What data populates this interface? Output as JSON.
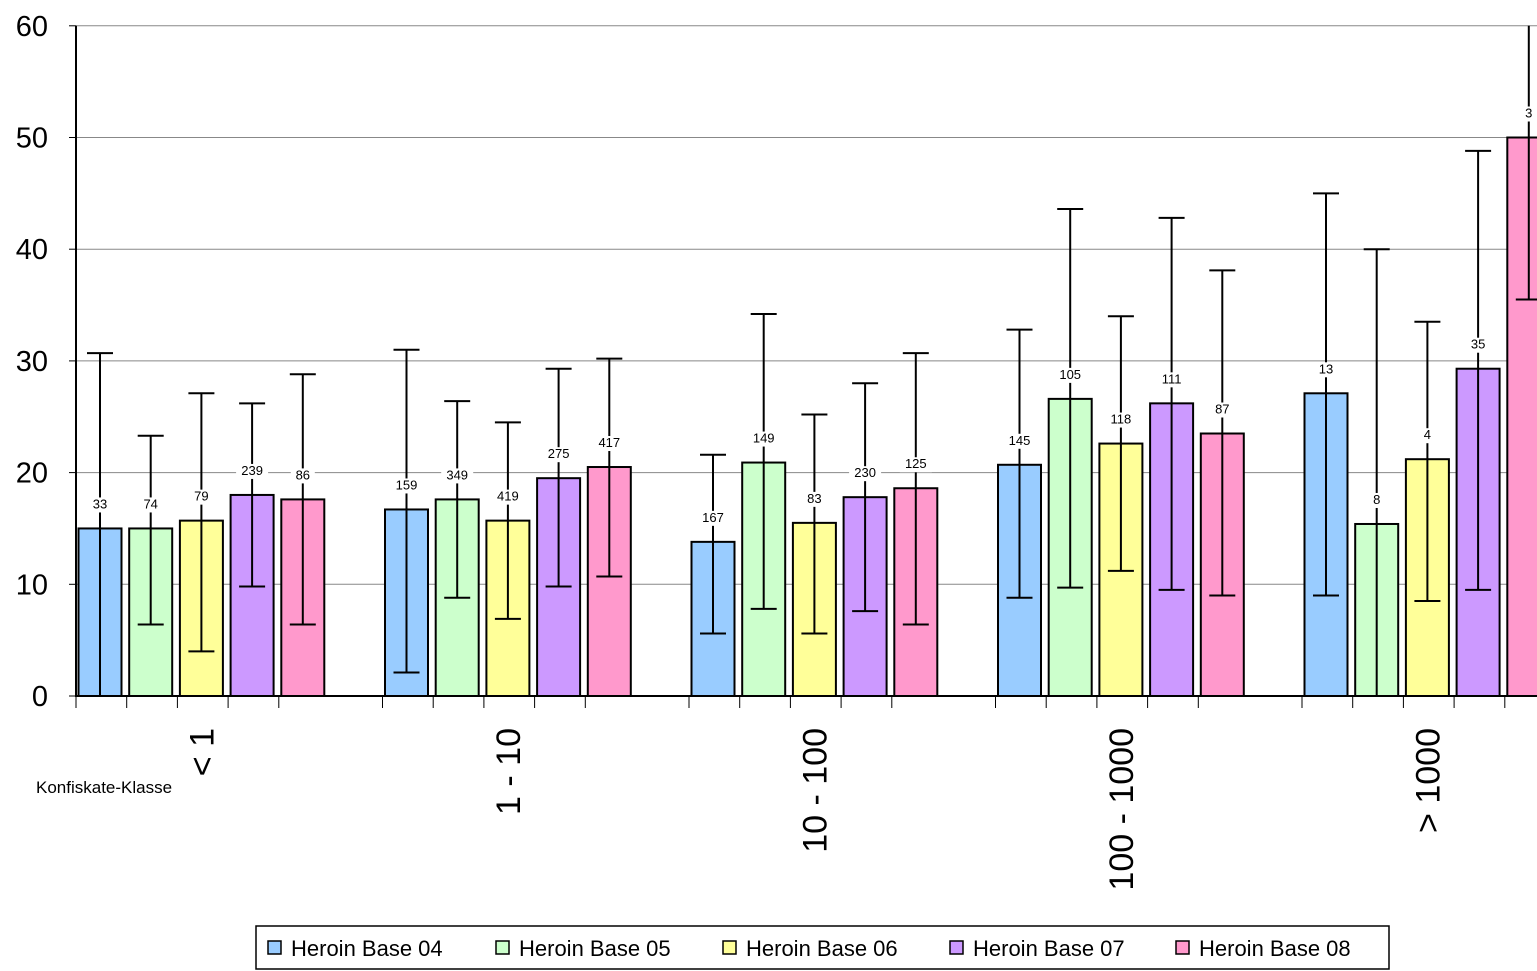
{
  "chart_data": {
    "type": "bar",
    "title": "",
    "xlabel": "Konfiskate-Klasse",
    "ylabel": "",
    "ylim": [
      0,
      60
    ],
    "yticks": [
      0,
      10,
      20,
      30,
      40,
      50,
      60
    ],
    "grid": true,
    "legend_position": "bottom",
    "categories": [
      "< 1",
      "1 - 10",
      "10 - 100",
      "100 - 1000",
      "> 1000"
    ],
    "series": [
      {
        "name": "Heroin Base 04",
        "color": "#99ccff",
        "values": [
          15.0,
          16.7,
          13.8,
          20.7,
          27.1
        ],
        "error_low": [
          0.0,
          2.1,
          5.6,
          8.8,
          9.0
        ],
        "error_high": [
          30.7,
          31.0,
          21.6,
          32.8,
          45.0
        ],
        "n": [
          "33",
          "159",
          "167",
          "145",
          "13"
        ]
      },
      {
        "name": "Heroin Base 05",
        "color": "#ccffcc",
        "values": [
          15.0,
          17.6,
          20.9,
          26.6,
          15.4
        ],
        "error_low": [
          6.4,
          8.8,
          7.8,
          9.7,
          0.0
        ],
        "error_high": [
          23.3,
          26.4,
          34.2,
          43.6,
          40.0
        ],
        "n": [
          "74",
          "349",
          "149",
          "105",
          "8"
        ]
      },
      {
        "name": "Heroin Base 06",
        "color": "#ffff99",
        "values": [
          15.7,
          15.7,
          15.5,
          22.6,
          21.2
        ],
        "error_low": [
          4.0,
          6.9,
          5.6,
          11.2,
          8.5
        ],
        "error_high": [
          27.1,
          24.5,
          25.2,
          34.0,
          33.5
        ],
        "n": [
          "79",
          "419",
          "83",
          "118",
          "4"
        ]
      },
      {
        "name": "Heroin Base 07",
        "color": "#cc99ff",
        "values": [
          18.0,
          19.5,
          17.8,
          26.2,
          29.3
        ],
        "error_low": [
          9.8,
          9.8,
          7.6,
          9.5,
          9.5
        ],
        "error_high": [
          26.2,
          29.3,
          28.0,
          42.8,
          48.8
        ],
        "n": [
          "239",
          "275",
          "230",
          "111",
          "35"
        ]
      },
      {
        "name": "Heroin Base 08",
        "color": "#ff99cc",
        "values": [
          17.6,
          20.5,
          18.6,
          23.5,
          50.0
        ],
        "error_low": [
          6.4,
          10.7,
          6.4,
          9.0,
          35.5
        ],
        "error_high": [
          28.8,
          30.2,
          30.7,
          38.1,
          60.0
        ],
        "n": [
          "86",
          "417",
          "125",
          "87",
          "3"
        ]
      }
    ]
  }
}
